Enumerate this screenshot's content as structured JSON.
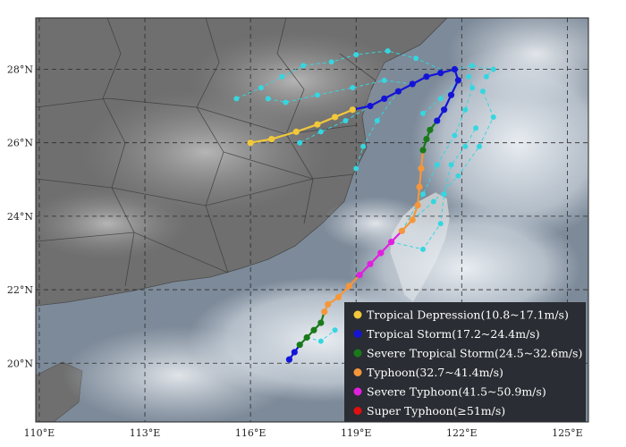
{
  "map": {
    "lon_range": [
      109.9,
      125.6
    ],
    "lat_range": [
      18.4,
      29.4
    ],
    "x_ticks": [
      {
        "value": 110,
        "label": "110°E"
      },
      {
        "value": 113,
        "label": "113°E"
      },
      {
        "value": 116,
        "label": "116°E"
      },
      {
        "value": 119,
        "label": "119°E"
      },
      {
        "value": 122,
        "label": "122°E"
      },
      {
        "value": 125,
        "label": "125°E"
      }
    ],
    "y_ticks": [
      {
        "value": 28,
        "label": "28°N"
      },
      {
        "value": 26,
        "label": "26°N"
      },
      {
        "value": 24,
        "label": "24°N"
      },
      {
        "value": 22,
        "label": "22°N"
      },
      {
        "value": 20,
        "label": "20°N"
      }
    ],
    "grid": true,
    "land_color": "#6f6f6f",
    "sea_color": "#7d8a99",
    "cloud_color": "#e6ecf2"
  },
  "legend": {
    "placement": "bottom-right",
    "background": "#2a2d33",
    "items": [
      {
        "label": "Tropical Depression(10.8~17.1m/s)",
        "color": "#f2c83a"
      },
      {
        "label": "Tropical Storm(17.2~24.4m/s)",
        "color": "#1414d8"
      },
      {
        "label": "Severe Tropical Storm(24.5~32.6m/s)",
        "color": "#1a7a1a"
      },
      {
        "label": "Typhoon(32.7~41.4m/s)",
        "color": "#f5963a"
      },
      {
        "label": "Severe Typhoon(41.5~50.9m/s)",
        "color": "#e020e0"
      },
      {
        "label": "Super Typhoon(≥51m/s)",
        "color": "#e01010"
      }
    ]
  },
  "tracks": {
    "main": [
      {
        "lon": 117.1,
        "lat": 20.1,
        "color": "#1414d8"
      },
      {
        "lon": 117.25,
        "lat": 20.3,
        "color": "#1414d8"
      },
      {
        "lon": 117.4,
        "lat": 20.5,
        "color": "#1a7a1a"
      },
      {
        "lon": 117.6,
        "lat": 20.7,
        "color": "#1a7a1a"
      },
      {
        "lon": 117.8,
        "lat": 20.9,
        "color": "#1a7a1a"
      },
      {
        "lon": 118.0,
        "lat": 21.1,
        "color": "#1a7a1a"
      },
      {
        "lon": 118.1,
        "lat": 21.4,
        "color": "#f5963a"
      },
      {
        "lon": 118.2,
        "lat": 21.6,
        "color": "#f5963a"
      },
      {
        "lon": 118.5,
        "lat": 21.8,
        "color": "#f5963a"
      },
      {
        "lon": 118.8,
        "lat": 22.1,
        "color": "#f5963a"
      },
      {
        "lon": 119.1,
        "lat": 22.4,
        "color": "#e020e0"
      },
      {
        "lon": 119.4,
        "lat": 22.7,
        "color": "#e020e0"
      },
      {
        "lon": 119.7,
        "lat": 23.0,
        "color": "#e020e0"
      },
      {
        "lon": 120.0,
        "lat": 23.3,
        "color": "#e020e0"
      },
      {
        "lon": 120.3,
        "lat": 23.6,
        "color": "#f5963a"
      },
      {
        "lon": 120.6,
        "lat": 23.9,
        "color": "#f5963a"
      },
      {
        "lon": 120.75,
        "lat": 24.3,
        "color": "#f5963a"
      },
      {
        "lon": 120.8,
        "lat": 24.8,
        "color": "#f5963a"
      },
      {
        "lon": 120.85,
        "lat": 25.3,
        "color": "#f5963a"
      },
      {
        "lon": 120.9,
        "lat": 25.8,
        "color": "#1a7a1a"
      },
      {
        "lon": 121.0,
        "lat": 26.1,
        "color": "#1a7a1a"
      },
      {
        "lon": 121.1,
        "lat": 26.35,
        "color": "#1a7a1a"
      },
      {
        "lon": 121.3,
        "lat": 26.6,
        "color": "#1414d8"
      },
      {
        "lon": 121.5,
        "lat": 26.9,
        "color": "#1414d8"
      },
      {
        "lon": 121.7,
        "lat": 27.3,
        "color": "#1414d8"
      },
      {
        "lon": 121.9,
        "lat": 27.7,
        "color": "#1414d8"
      },
      {
        "lon": 121.8,
        "lat": 28.0,
        "color": "#1414d8"
      },
      {
        "lon": 121.4,
        "lat": 27.9,
        "color": "#1414d8"
      },
      {
        "lon": 121.0,
        "lat": 27.8,
        "color": "#1414d8"
      },
      {
        "lon": 120.6,
        "lat": 27.6,
        "color": "#1414d8"
      },
      {
        "lon": 120.2,
        "lat": 27.4,
        "color": "#1414d8"
      },
      {
        "lon": 119.8,
        "lat": 27.2,
        "color": "#1414d8"
      },
      {
        "lon": 119.4,
        "lat": 27.0,
        "color": "#1414d8"
      },
      {
        "lon": 118.9,
        "lat": 26.9,
        "color": "#f2c83a"
      },
      {
        "lon": 118.4,
        "lat": 26.7,
        "color": "#f2c83a"
      },
      {
        "lon": 117.9,
        "lat": 26.5,
        "color": "#f2c83a"
      },
      {
        "lon": 117.3,
        "lat": 26.3,
        "color": "#f2c83a"
      },
      {
        "lon": 116.6,
        "lat": 26.1,
        "color": "#f2c83a"
      },
      {
        "lon": 116.0,
        "lat": 26.0,
        "color": "#f2c83a"
      }
    ],
    "forecast_color": "#35d6e0",
    "forecast": [
      [
        {
          "lon": 120.3,
          "lat": 23.6
        },
        {
          "lon": 120.9,
          "lat": 24.6
        },
        {
          "lon": 121.3,
          "lat": 25.4
        },
        {
          "lon": 121.8,
          "lat": 26.2
        },
        {
          "lon": 122.1,
          "lat": 26.9
        },
        {
          "lon": 122.3,
          "lat": 27.5
        },
        {
          "lon": 122.2,
          "lat": 27.8
        }
      ],
      [
        {
          "lon": 120.6,
          "lat": 23.9
        },
        {
          "lon": 121.2,
          "lat": 24.4
        },
        {
          "lon": 121.9,
          "lat": 25.1
        },
        {
          "lon": 122.5,
          "lat": 25.9
        },
        {
          "lon": 122.9,
          "lat": 26.7
        },
        {
          "lon": 122.6,
          "lat": 27.4
        }
      ],
      [
        {
          "lon": 120.0,
          "lat": 23.3
        },
        {
          "lon": 120.9,
          "lat": 23.1
        },
        {
          "lon": 121.4,
          "lat": 23.8
        },
        {
          "lon": 121.5,
          "lat": 24.6
        },
        {
          "lon": 121.7,
          "lat": 25.4
        },
        {
          "lon": 122.1,
          "lat": 25.9
        },
        {
          "lon": 122.4,
          "lat": 26.4
        }
      ],
      [
        {
          "lon": 121.8,
          "lat": 28.0
        },
        {
          "lon": 122.3,
          "lat": 28.1
        },
        {
          "lon": 122.9,
          "lat": 28.0
        },
        {
          "lon": 122.7,
          "lat": 27.8
        }
      ],
      [
        {
          "lon": 121.4,
          "lat": 28.0
        },
        {
          "lon": 120.7,
          "lat": 28.3
        },
        {
          "lon": 119.9,
          "lat": 28.5
        },
        {
          "lon": 119.0,
          "lat": 28.4
        },
        {
          "lon": 118.3,
          "lat": 28.2
        },
        {
          "lon": 117.5,
          "lat": 28.1
        },
        {
          "lon": 116.9,
          "lat": 27.8
        },
        {
          "lon": 116.3,
          "lat": 27.5
        },
        {
          "lon": 115.6,
          "lat": 27.2
        }
      ],
      [
        {
          "lon": 120.6,
          "lat": 27.6
        },
        {
          "lon": 119.8,
          "lat": 27.7
        },
        {
          "lon": 118.9,
          "lat": 27.5
        },
        {
          "lon": 117.9,
          "lat": 27.3
        },
        {
          "lon": 117.0,
          "lat": 27.1
        },
        {
          "lon": 116.5,
          "lat": 27.2
        }
      ],
      [
        {
          "lon": 119.4,
          "lat": 27.0
        },
        {
          "lon": 118.7,
          "lat": 26.6
        },
        {
          "lon": 118.0,
          "lat": 26.3
        },
        {
          "lon": 117.4,
          "lat": 26.0
        }
      ],
      [
        {
          "lon": 120.2,
          "lat": 27.4
        },
        {
          "lon": 119.6,
          "lat": 26.6
        },
        {
          "lon": 119.2,
          "lat": 25.9
        },
        {
          "lon": 119.0,
          "lat": 25.3
        }
      ],
      [
        {
          "lon": 121.9,
          "lat": 27.7
        },
        {
          "lon": 121.4,
          "lat": 27.2
        },
        {
          "lon": 120.9,
          "lat": 26.8
        }
      ],
      [
        {
          "lon": 117.6,
          "lat": 20.7
        },
        {
          "lon": 118.0,
          "lat": 20.6
        },
        {
          "lon": 118.4,
          "lat": 20.9
        }
      ]
    ]
  }
}
